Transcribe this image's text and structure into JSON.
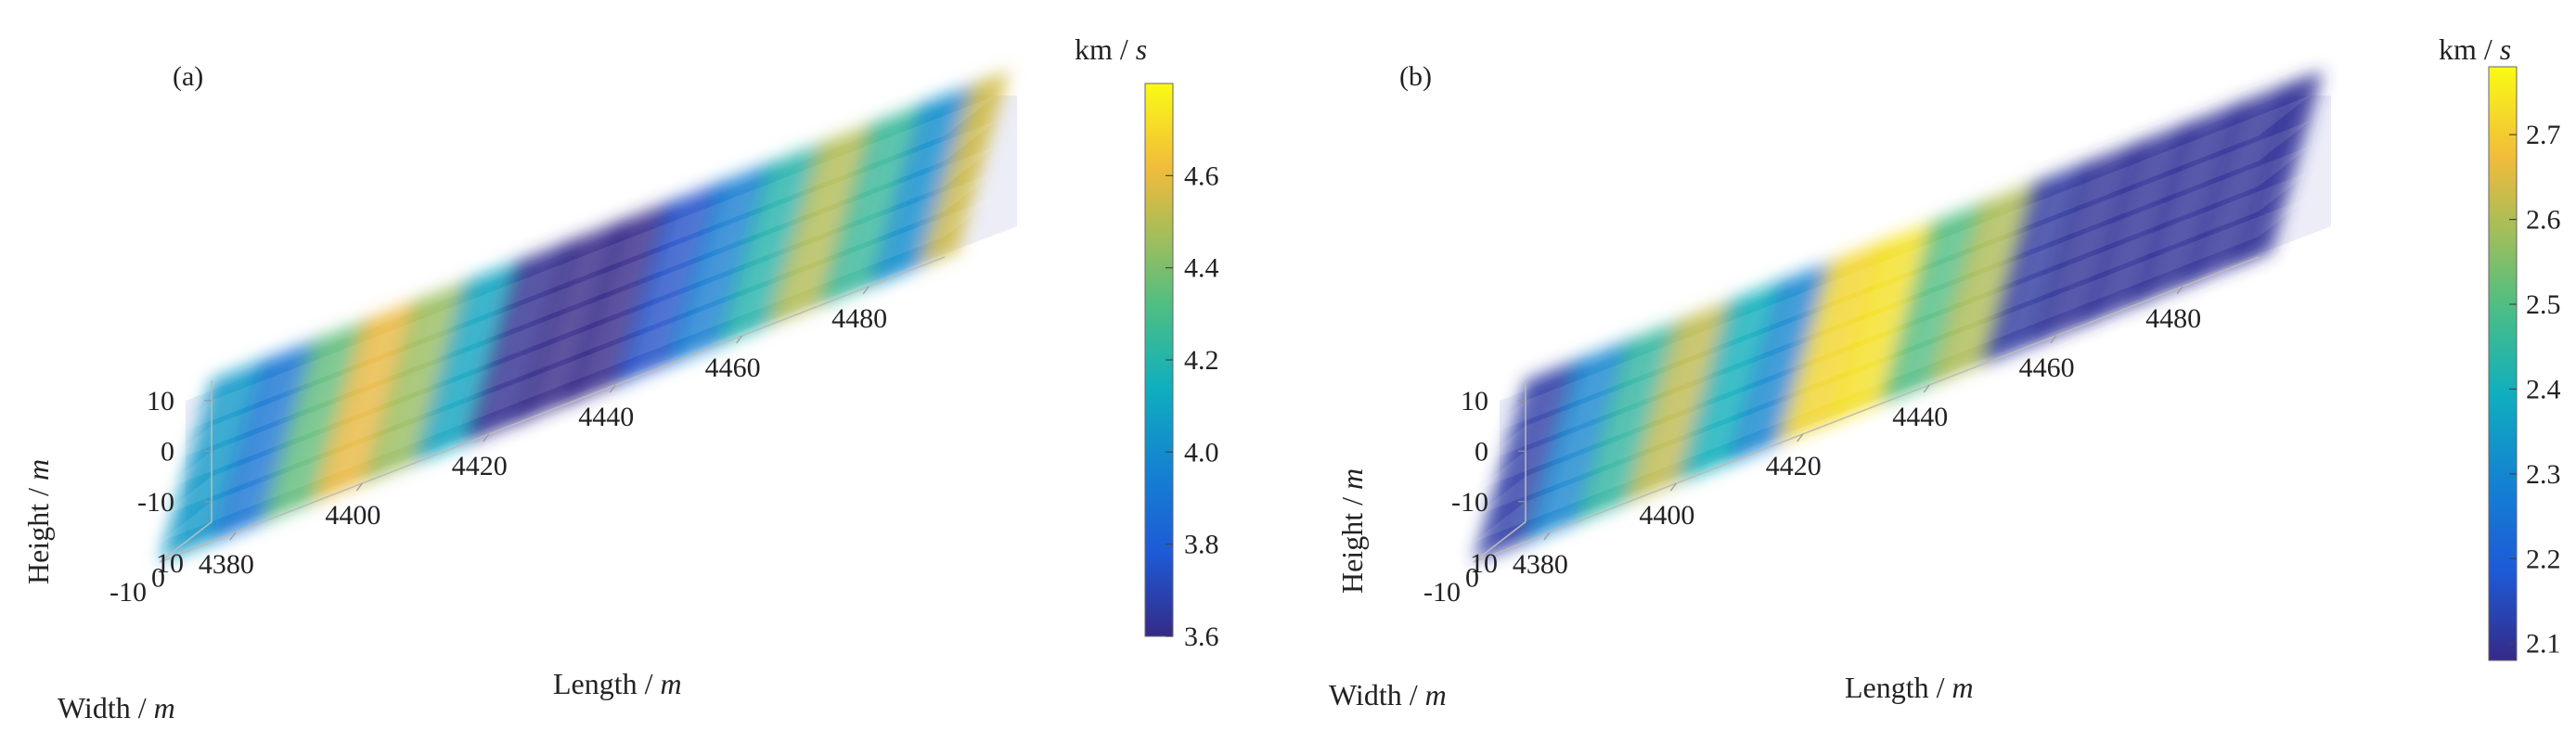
{
  "chart_data": [
    {
      "type": "heatmap",
      "panel_label": "(a)",
      "projection": "3d",
      "xlabel": "Length / m",
      "xlabel_main": "Length / ",
      "xlabel_unit": "m",
      "ylabel": "Width / m",
      "ylabel_main": "Width / ",
      "ylabel_unit": "m",
      "zlabel": "Height / m",
      "zlabel_main": "Height / ",
      "zlabel_unit": "m",
      "xlim": [
        4368,
        4492
      ],
      "ylim": [
        -14,
        14
      ],
      "zlim": [
        -14,
        14
      ],
      "x_ticks": [
        4380,
        4400,
        4420,
        4440,
        4460,
        4480
      ],
      "y_ticks": [
        10,
        0,
        -10
      ],
      "z_ticks": [
        10,
        0,
        -10
      ],
      "colorbar": {
        "title": "km / s",
        "title_main": "km / ",
        "title_unit": "s",
        "ticks": [
          "4.6",
          "4.4",
          "4.2",
          "4.0",
          "3.8",
          "3.6"
        ],
        "tick_values": [
          4.6,
          4.4,
          4.2,
          4.0,
          3.8,
          3.6
        ],
        "range": [
          3.6,
          4.8
        ],
        "colormap": "parula"
      },
      "velocity_profile_along_length": {
        "length": [
          4368,
          4376,
          4384,
          4392,
          4400,
          4408,
          4416,
          4424,
          4432,
          4440,
          4448,
          4456,
          4464,
          4472,
          4480,
          4488
        ],
        "velocity": [
          4.05,
          3.9,
          4.35,
          4.6,
          4.45,
          4.1,
          3.62,
          3.6,
          3.6,
          3.75,
          3.95,
          4.2,
          4.5,
          4.25,
          4.0,
          4.55
        ]
      }
    },
    {
      "type": "heatmap",
      "panel_label": "(b)",
      "projection": "3d",
      "xlabel": "Length / m",
      "xlabel_main": "Length / ",
      "xlabel_unit": "m",
      "ylabel": "Width / m",
      "ylabel_main": "Width / ",
      "ylabel_unit": "m",
      "zlabel": "Height / m",
      "zlabel_main": "Height / ",
      "zlabel_unit": "m",
      "xlim": [
        4368,
        4492
      ],
      "ylim": [
        -14,
        14
      ],
      "zlim": [
        -14,
        14
      ],
      "x_ticks": [
        4380,
        4400,
        4420,
        4440,
        4460,
        4480
      ],
      "y_ticks": [
        10,
        0,
        -10
      ],
      "z_ticks": [
        10,
        0,
        -10
      ],
      "colorbar": {
        "title": "km / s",
        "title_main": "km / ",
        "title_unit": "s",
        "ticks": [
          "2.7",
          "2.6",
          "2.5",
          "2.4",
          "2.3",
          "2.2",
          "2.1"
        ],
        "tick_values": [
          2.7,
          2.6,
          2.5,
          2.4,
          2.3,
          2.2,
          2.1
        ],
        "range": [
          2.08,
          2.78
        ],
        "colormap": "parula"
      },
      "velocity_profile_along_length": {
        "length": [
          4368,
          4376,
          4384,
          4392,
          4400,
          4408,
          4416,
          4424,
          4432,
          4440,
          4448,
          4456,
          4464,
          4472,
          4480,
          4488
        ],
        "velocity": [
          2.12,
          2.3,
          2.45,
          2.62,
          2.4,
          2.3,
          2.72,
          2.74,
          2.5,
          2.6,
          2.11,
          2.1,
          2.1,
          2.1,
          2.1,
          2.1
        ]
      }
    }
  ]
}
